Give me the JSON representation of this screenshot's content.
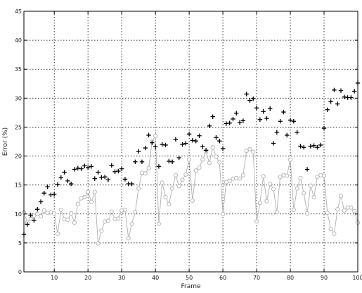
{
  "chart_data": {
    "type": "scatter",
    "title": "",
    "xlabel": "Frame",
    "ylabel": "Error (%)",
    "xlim": [
      1,
      100
    ],
    "ylim": [
      0,
      45
    ],
    "xticks": [
      10,
      20,
      30,
      40,
      50,
      60,
      70,
      80,
      90,
      100
    ],
    "yticks": [
      0,
      5,
      10,
      15,
      20,
      25,
      30,
      35,
      40,
      45
    ],
    "grid": true,
    "legend": "none",
    "colors": {
      "plus_series": "#000000",
      "circle_series": "#b0b0b0",
      "grid": "#000000"
    },
    "x": [
      1,
      2,
      3,
      4,
      5,
      6,
      7,
      8,
      9,
      10,
      11,
      12,
      13,
      14,
      15,
      16,
      17,
      18,
      19,
      20,
      21,
      22,
      23,
      24,
      25,
      26,
      27,
      28,
      29,
      30,
      31,
      32,
      33,
      34,
      35,
      36,
      37,
      38,
      39,
      40,
      41,
      42,
      43,
      44,
      45,
      46,
      47,
      48,
      49,
      50,
      51,
      52,
      53,
      54,
      55,
      56,
      57,
      58,
      59,
      60,
      61,
      62,
      63,
      64,
      65,
      66,
      67,
      68,
      69,
      70,
      71,
      72,
      73,
      74,
      75,
      76,
      77,
      78,
      79,
      80,
      81,
      82,
      83,
      84,
      85,
      86,
      87,
      88,
      89,
      90,
      91,
      92,
      93,
      94,
      95,
      96,
      97,
      98,
      99,
      100
    ],
    "series": [
      {
        "name": "",
        "marker": "plus",
        "values": [
          6.5,
          8.2,
          9.8,
          8.9,
          10.8,
          12.1,
          13.6,
          14.7,
          13.3,
          13.4,
          15.1,
          16.3,
          17.2,
          15.7,
          15.2,
          17.7,
          17.9,
          17.8,
          18.3,
          18.0,
          18.2,
          16.1,
          17.2,
          16.3,
          16.4,
          15.9,
          18.4,
          17.3,
          17.4,
          17.8,
          16.0,
          15.2,
          15.2,
          19.0,
          20.8,
          19.0,
          21.4,
          23.6,
          22.3,
          21.6,
          18.2,
          22.0,
          21.9,
          19.1,
          19.0,
          22.9,
          19.7,
          22.0,
          22.2,
          23.8,
          22.7,
          22.6,
          23.5,
          21.6,
          21.0,
          25.2,
          26.8,
          23.2,
          22.6,
          21.3,
          25.6,
          25.7,
          26.4,
          27.4,
          25.8,
          26.1,
          30.7,
          29.6,
          29.9,
          28.3,
          26.3,
          27.7,
          26.5,
          28.2,
          22.2,
          24.1,
          26.0,
          27.6,
          23.6,
          26.2,
          26.0,
          24.1,
          21.7,
          21.5,
          17.7,
          21.7,
          21.8,
          21.5,
          21.9,
          24.8,
          28.0,
          29.4,
          31.4,
          29.0,
          31.3,
          30.2,
          30.1,
          30.1,
          31.2,
          32.6
        ]
      },
      {
        "name": "",
        "marker": "circle",
        "values": [
          10.3,
          8.5,
          9.2,
          9.7,
          10.0,
          9.6,
          10.6,
          10.2,
          10.3,
          10.1,
          6.6,
          10.7,
          9.1,
          9.0,
          10.1,
          8.5,
          11.7,
          12.7,
          12.9,
          13.8,
          12.1,
          13.8,
          4.9,
          7.1,
          8.7,
          8.8,
          10.4,
          9.1,
          9.2,
          10.6,
          10.7,
          5.8,
          8.3,
          10.3,
          14.4,
          17.1,
          17.0,
          17.9,
          22.5,
          23.5,
          8.3,
          15.4,
          12.9,
          11.7,
          14.4,
          16.7,
          14.8,
          15.9,
          16.8,
          19.4,
          12.3,
          17.5,
          18.0,
          19.4,
          20.7,
          18.8,
          21.5,
          19.9,
          18.9,
          10.0,
          15.5,
          15.7,
          16.1,
          16.2,
          16.1,
          16.7,
          20.9,
          21.2,
          20.7,
          8.7,
          11.9,
          16.5,
          12.2,
          15.2,
          14.3,
          10.3,
          16.4,
          16.7,
          16.6,
          19.4,
          10.7,
          14.4,
          16.2,
          13.6,
          10.1,
          14.9,
          12.9,
          16.4,
          16.7,
          16.6,
          10.2,
          7.4,
          6.6,
          10.8,
          13.1,
          10.6,
          11.1,
          11.1,
          10.5,
          8.5
        ]
      }
    ]
  }
}
